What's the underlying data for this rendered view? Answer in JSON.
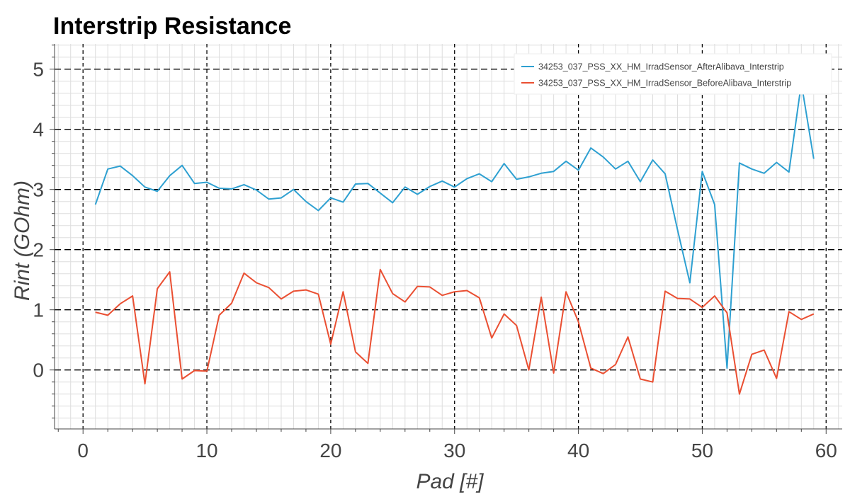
{
  "chart_data": {
    "type": "line",
    "title": "Interstrip Resistance",
    "xlabel": "Pad [#]",
    "ylabel": "Rint (GOhm)",
    "xlim": [
      -2.3,
      61.3
    ],
    "ylim": [
      -0.98,
      5.42
    ],
    "xticks": [
      0,
      10,
      20,
      30,
      40,
      50,
      60
    ],
    "yticks": [
      0,
      1,
      2,
      3,
      4,
      5
    ],
    "grid": true,
    "legend_position": "top-right",
    "series": [
      {
        "name": "34253_037_PSS_XX_HM_IrradSensor_AfterAlibava_Interstrip",
        "color": "#2ea0d1",
        "x": [
          1,
          2,
          3,
          4,
          5,
          6,
          7,
          8,
          9,
          10,
          11,
          12,
          13,
          14,
          15,
          16,
          17,
          18,
          19,
          20,
          21,
          22,
          23,
          24,
          25,
          26,
          27,
          28,
          29,
          30,
          31,
          32,
          33,
          34,
          35,
          36,
          37,
          38,
          39,
          40,
          41,
          42,
          43,
          44,
          45,
          46,
          47,
          48,
          49,
          50,
          51,
          52,
          53,
          54,
          55,
          56,
          57,
          58,
          59
        ],
        "values": [
          2.75,
          3.34,
          3.39,
          3.23,
          3.04,
          2.97,
          3.23,
          3.4,
          3.1,
          3.12,
          3.02,
          3.01,
          3.08,
          2.99,
          2.84,
          2.86,
          3.0,
          2.8,
          2.65,
          2.86,
          2.79,
          3.09,
          3.1,
          2.94,
          2.78,
          3.04,
          2.92,
          3.05,
          3.14,
          3.04,
          3.18,
          3.26,
          3.13,
          3.43,
          3.17,
          3.21,
          3.27,
          3.3,
          3.47,
          3.32,
          3.69,
          3.54,
          3.34,
          3.47,
          3.13,
          3.49,
          3.26,
          2.33,
          1.45,
          3.3,
          2.75,
          0.03,
          3.44,
          3.34,
          3.27,
          3.45,
          3.29,
          4.77,
          3.51
        ]
      },
      {
        "name": "34253_037_PSS_XX_HM_IrradSensor_BeforeAlibava_Interstrip",
        "color": "#ea4f32",
        "x": [
          1,
          2,
          3,
          4,
          5,
          6,
          7,
          8,
          9,
          10,
          11,
          12,
          13,
          14,
          15,
          16,
          17,
          18,
          19,
          20,
          21,
          22,
          23,
          24,
          25,
          26,
          27,
          28,
          29,
          30,
          31,
          32,
          33,
          34,
          35,
          36,
          37,
          38,
          39,
          40,
          41,
          42,
          43,
          44,
          45,
          46,
          47,
          48,
          49,
          50,
          51,
          52,
          53,
          54,
          55,
          56,
          57,
          58,
          59
        ],
        "values": [
          0.96,
          0.91,
          1.1,
          1.23,
          -0.23,
          1.35,
          1.63,
          -0.15,
          -0.01,
          -0.02,
          0.91,
          1.11,
          1.61,
          1.45,
          1.37,
          1.18,
          1.31,
          1.33,
          1.26,
          0.43,
          1.3,
          0.3,
          0.11,
          1.67,
          1.27,
          1.13,
          1.39,
          1.38,
          1.24,
          1.3,
          1.32,
          1.2,
          0.53,
          0.93,
          0.74,
          0.0,
          1.21,
          -0.05,
          1.3,
          0.8,
          0.03,
          -0.06,
          0.09,
          0.55,
          -0.15,
          -0.2,
          1.31,
          1.19,
          1.18,
          1.04,
          1.23,
          0.95,
          -0.4,
          0.26,
          0.33,
          -0.14,
          0.97,
          0.84,
          0.93
        ]
      }
    ]
  }
}
